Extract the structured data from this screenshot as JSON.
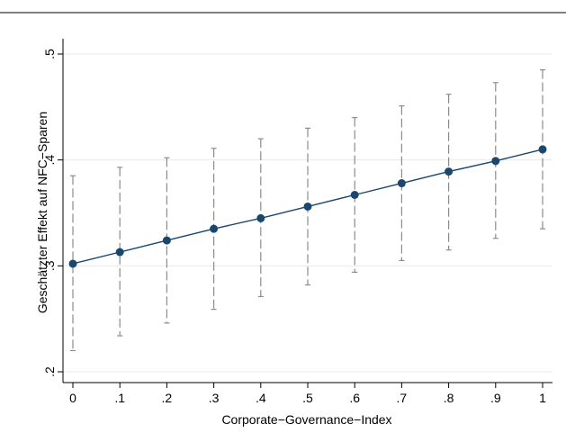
{
  "chart_data": {
    "type": "line",
    "title": "",
    "xlabel": "Corporate−Governance−Index",
    "ylabel": "Geschätzter Effekt auf NFC−Sparen",
    "xlim": [
      0,
      1
    ],
    "ylim": [
      0.2,
      0.5
    ],
    "grid": true,
    "legend": "none",
    "x_ticks": [
      {
        "value": 0,
        "label": "0"
      },
      {
        "value": 0.1,
        "label": ".1"
      },
      {
        "value": 0.2,
        "label": ".2"
      },
      {
        "value": 0.3,
        "label": ".3"
      },
      {
        "value": 0.4,
        "label": ".4"
      },
      {
        "value": 0.5,
        "label": ".5"
      },
      {
        "value": 0.6,
        "label": ".6"
      },
      {
        "value": 0.7,
        "label": ".7"
      },
      {
        "value": 0.8,
        "label": ".8"
      },
      {
        "value": 0.9,
        "label": ".9"
      },
      {
        "value": 1,
        "label": "1"
      }
    ],
    "y_ticks": [
      {
        "value": 0.2,
        "label": ".2"
      },
      {
        "value": 0.3,
        "label": ".3"
      },
      {
        "value": 0.4,
        "label": ".4"
      },
      {
        "value": 0.5,
        "label": ".5"
      }
    ],
    "x": [
      0,
      0.1,
      0.2,
      0.3,
      0.4,
      0.5,
      0.6,
      0.7,
      0.8,
      0.9,
      1
    ],
    "series": [
      {
        "values": [
          0.302,
          0.313,
          0.324,
          0.335,
          0.345,
          0.356,
          0.367,
          0.378,
          0.389,
          0.399,
          0.41
        ],
        "ci_lower": [
          0.22,
          0.234,
          0.246,
          0.259,
          0.271,
          0.282,
          0.294,
          0.305,
          0.315,
          0.326,
          0.335
        ],
        "ci_upper": [
          0.385,
          0.393,
          0.402,
          0.411,
          0.42,
          0.43,
          0.44,
          0.451,
          0.462,
          0.473,
          0.485
        ],
        "color": "#1a476f",
        "ci_color": "#8c8c8c"
      }
    ]
  }
}
